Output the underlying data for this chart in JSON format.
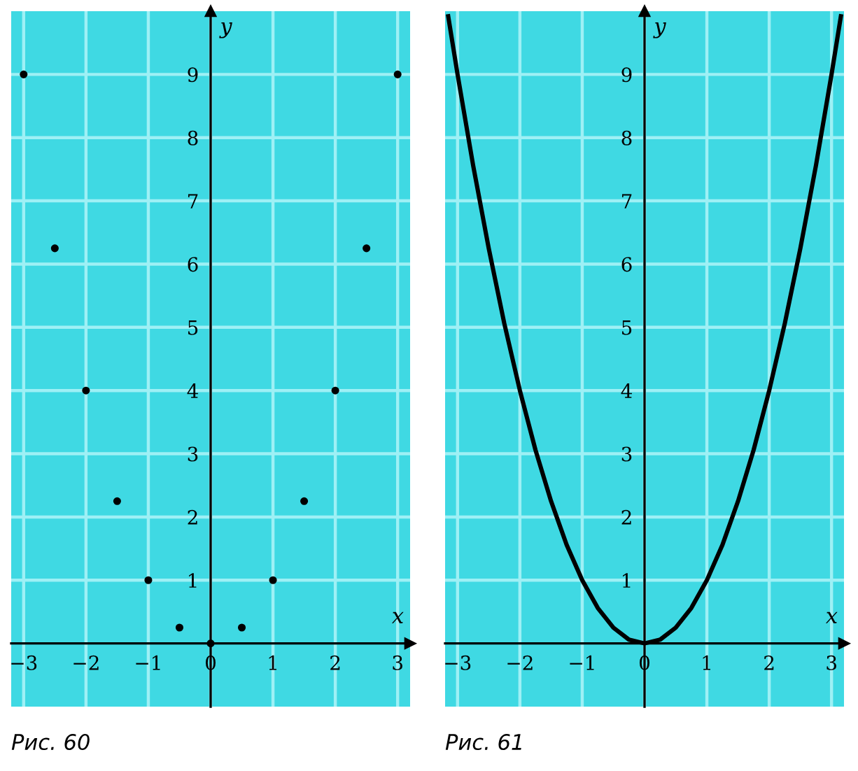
{
  "chart_data": [
    {
      "type": "scatter",
      "xlabel": "x",
      "ylabel": "y",
      "annotations": [
        "Рис. 60"
      ],
      "color": "#000000",
      "grid": true,
      "marker": "circle",
      "x": [
        -3,
        -2.5,
        -2,
        -1.5,
        -1,
        -0.5,
        0,
        0.5,
        1,
        1.5,
        2,
        2.5,
        3
      ],
      "values": [
        9,
        6.25,
        4,
        2.25,
        1,
        0.25,
        0,
        0.25,
        1,
        2.25,
        4,
        6.25,
        9
      ],
      "xlim": [
        -3.2,
        3.2
      ],
      "ylim": [
        -1,
        10
      ],
      "xticks": [
        -3,
        -2,
        -1,
        0,
        1,
        2,
        3
      ],
      "yticks": [
        1,
        2,
        3,
        4,
        5,
        6,
        7,
        8,
        9
      ]
    },
    {
      "type": "line",
      "xlabel": "x",
      "ylabel": "y",
      "annotations": [
        "Рис. 61"
      ],
      "color": "#000000",
      "grid": true,
      "marker": "none",
      "line_style": "solid",
      "x": [
        -3.15,
        -3,
        -2.75,
        -2.5,
        -2.25,
        -2,
        -1.75,
        -1.5,
        -1.25,
        -1,
        -0.75,
        -0.5,
        -0.25,
        0,
        0.25,
        0.5,
        0.75,
        1,
        1.25,
        1.5,
        1.75,
        2,
        2.25,
        2.5,
        2.75,
        3,
        3.15
      ],
      "values": [
        9.92,
        9,
        7.56,
        6.25,
        5.06,
        4,
        3.06,
        2.25,
        1.56,
        1,
        0.56,
        0.25,
        0.06,
        0,
        0.06,
        0.25,
        0.56,
        1,
        1.56,
        2.25,
        3.06,
        4,
        5.06,
        6.25,
        7.56,
        9,
        9.92
      ],
      "xlim": [
        -3.2,
        3.2
      ],
      "ylim": [
        -1,
        10
      ],
      "xticks": [
        -3,
        -2,
        -1,
        0,
        1,
        2,
        3
      ],
      "yticks": [
        1,
        2,
        3,
        4,
        5,
        6,
        7,
        8,
        9
      ]
    }
  ]
}
